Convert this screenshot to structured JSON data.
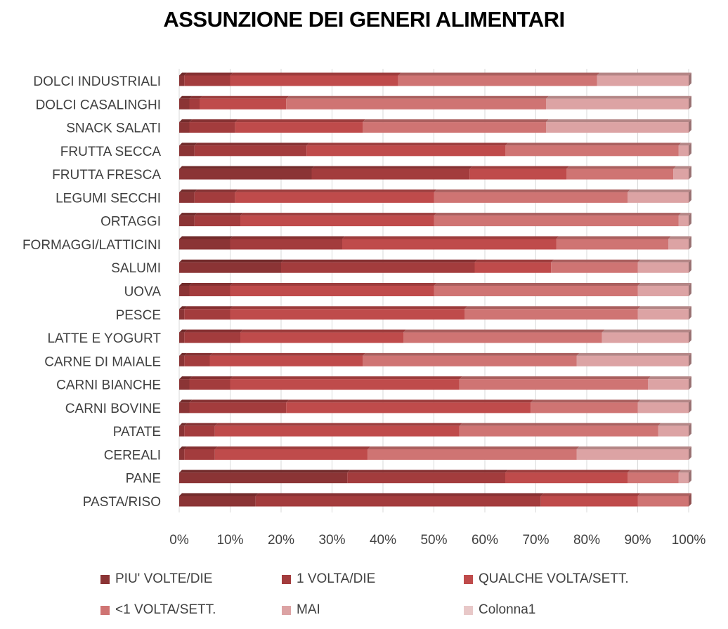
{
  "chart_data": {
    "type": "bar",
    "orientation": "horizontal",
    "stacked": "percent",
    "title": "ASSUNZIONE DEI GENERI ALIMENTARI",
    "xlabel": "",
    "ylabel": "",
    "xlim": [
      0,
      100
    ],
    "xticks": [
      "0%",
      "10%",
      "20%",
      "30%",
      "40%",
      "50%",
      "60%",
      "70%",
      "80%",
      "90%",
      "100%"
    ],
    "categories": [
      "PASTA/RISO",
      "PANE",
      "CEREALI",
      "PATATE",
      "CARNI BOVINE",
      "CARNI BIANCHE",
      "CARNE DI MAIALE",
      "LATTE E YOGURT",
      "PESCE",
      "UOVA",
      "SALUMI",
      "FORMAGGI/LATTICINI",
      "ORTAGGI",
      "LEGUMI SECCHI",
      "FRUTTA FRESCA",
      "FRUTTA SECCA",
      "SNACK SALATI",
      "DOLCI CASALINGHI",
      "DOLCI INDUSTRIALI"
    ],
    "series": [
      {
        "name": "PIU' VOLTE/DIE",
        "color": "#8b3435",
        "values": [
          15,
          33,
          1,
          1,
          2,
          2,
          1,
          1,
          1,
          2,
          20,
          10,
          3,
          3,
          26,
          3,
          2,
          2,
          1
        ]
      },
      {
        "name": "1 VOLTA/DIE",
        "color": "#a33c3d",
        "values": [
          56,
          31,
          6,
          6,
          19,
          8,
          5,
          11,
          9,
          8,
          38,
          22,
          9,
          8,
          31,
          22,
          9,
          2,
          9
        ]
      },
      {
        "name": "QUALCHE VOLTA/SETT.",
        "color": "#bf4b4b",
        "values": [
          19,
          24,
          30,
          48,
          48,
          45,
          30,
          32,
          46,
          40,
          15,
          42,
          38,
          39,
          19,
          39,
          25,
          17,
          33
        ]
      },
      {
        "name": "<1 VOLTA/SETT.",
        "color": "#cf7473",
        "values": [
          10,
          10,
          41,
          39,
          21,
          37,
          42,
          39,
          34,
          40,
          17,
          22,
          48,
          38,
          21,
          34,
          36,
          51,
          39
        ]
      },
      {
        "name": "MAI",
        "color": "#dca3a4",
        "values": [
          0,
          2,
          22,
          6,
          10,
          8,
          22,
          17,
          10,
          10,
          10,
          4,
          2,
          12,
          3,
          2,
          28,
          28,
          18
        ]
      },
      {
        "name": "Colonna1",
        "color": "#e8c8c8",
        "values": [
          0,
          0,
          0,
          0,
          0,
          0,
          0,
          0,
          0,
          0,
          0,
          0,
          0,
          0,
          0,
          0,
          0,
          0,
          0
        ]
      }
    ],
    "legend_position": "bottom"
  }
}
